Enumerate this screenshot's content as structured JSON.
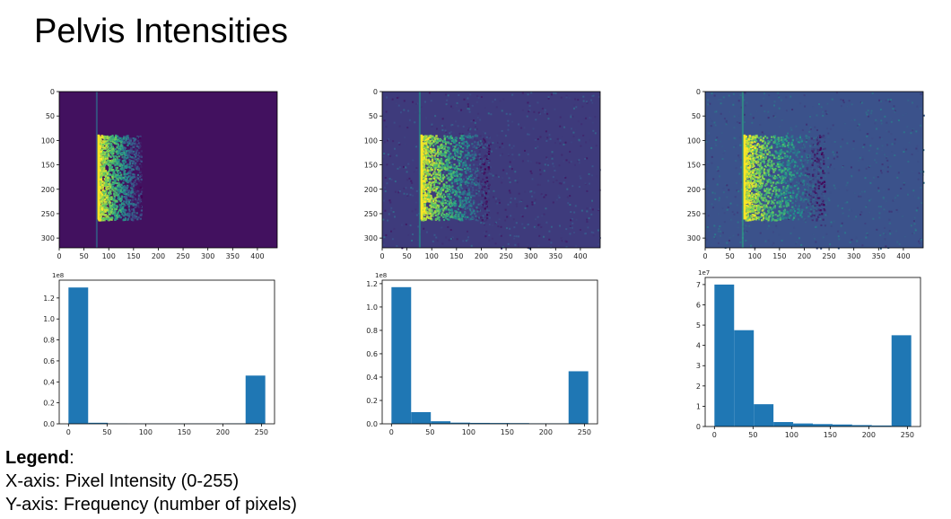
{
  "slide": {
    "title": "Pelvis Intensities"
  },
  "legend": {
    "heading": "Legend",
    "x_line": "X-axis: Pixel Intensity (0-255)",
    "y_line": "Y-axis: Frequency (number of pixels)"
  },
  "chart_data": [
    {
      "type": "heatmap",
      "colormap": "viridis",
      "xlim": [
        0,
        440
      ],
      "ylim": [
        320,
        0
      ],
      "x_ticks": [
        "0",
        "50",
        "100",
        "150",
        "200",
        "250",
        "300",
        "350",
        "400"
      ],
      "y_ticks": [
        "0",
        "50",
        "100",
        "150",
        "200",
        "250",
        "300"
      ],
      "x_tick_values": [
        0,
        50,
        100,
        150,
        200,
        250,
        300,
        350,
        400
      ],
      "y_tick_values": [
        0,
        50,
        100,
        150,
        200,
        250,
        300
      ],
      "signal_region": {
        "x": [
          78,
          165
        ],
        "y": [
          88,
          262
        ]
      },
      "background_level": 0.05
    },
    {
      "type": "heatmap",
      "colormap": "viridis",
      "xlim": [
        0,
        440
      ],
      "ylim": [
        320,
        0
      ],
      "x_ticks": [
        "0",
        "50",
        "100",
        "150",
        "200",
        "250",
        "300",
        "350",
        "400"
      ],
      "y_ticks": [
        "0",
        "50",
        "100",
        "150",
        "200",
        "250",
        "300"
      ],
      "x_tick_values": [
        0,
        50,
        100,
        150,
        200,
        250,
        300,
        350,
        400
      ],
      "y_tick_values": [
        0,
        50,
        100,
        150,
        200,
        250,
        300
      ],
      "signal_region": {
        "x": [
          78,
          215
        ],
        "y": [
          88,
          262
        ]
      },
      "background_level": 0.18
    },
    {
      "type": "heatmap",
      "colormap": "viridis",
      "xlim": [
        0,
        440
      ],
      "ylim": [
        320,
        0
      ],
      "x_ticks": [
        "0",
        "50",
        "100",
        "150",
        "200",
        "250",
        "300",
        "350",
        "400"
      ],
      "y_ticks": [
        "0",
        "50",
        "100",
        "150",
        "200",
        "250",
        "300"
      ],
      "x_tick_values": [
        0,
        50,
        100,
        150,
        200,
        250,
        300,
        350,
        400
      ],
      "y_tick_values": [
        0,
        50,
        100,
        150,
        200,
        250,
        300
      ],
      "signal_region": {
        "x": [
          78,
          240
        ],
        "y": [
          88,
          262
        ]
      },
      "background_level": 0.25
    },
    {
      "type": "bar",
      "color": "#1f77b4",
      "bin_edges": [
        0,
        25.5,
        51,
        76.5,
        102,
        127.5,
        153,
        178.5,
        204,
        229.5,
        255
      ],
      "values": [
        130000000.0,
        1000000.0,
        400000.0,
        300000.0,
        300000.0,
        300000.0,
        300000.0,
        300000.0,
        400000.0,
        46000000.0
      ],
      "xlim": [
        -12,
        267
      ],
      "ylim": [
        0,
        137000000.0
      ],
      "x_ticks": [
        "0",
        "50",
        "100",
        "150",
        "200",
        "250"
      ],
      "x_tick_values": [
        0,
        50,
        100,
        150,
        200,
        250
      ],
      "y_ticks": [
        "0.0",
        "0.2",
        "0.4",
        "0.6",
        "0.8",
        "1.0",
        "1.2"
      ],
      "y_tick_values": [
        0,
        20000000.0,
        40000000.0,
        60000000.0,
        80000000.0,
        100000000.0,
        120000000.0
      ],
      "offset_text": "1e8"
    },
    {
      "type": "bar",
      "color": "#1f77b4",
      "bin_edges": [
        0,
        25.5,
        51,
        76.5,
        102,
        127.5,
        153,
        178.5,
        204,
        229.5,
        255
      ],
      "values": [
        117000000.0,
        10000000.0,
        2200000.0,
        1000000.0,
        800000.0,
        700000.0,
        600000.0,
        400000.0,
        400000.0,
        45000000.0
      ],
      "xlim": [
        -12,
        267
      ],
      "ylim": [
        0,
        123000000.0
      ],
      "x_ticks": [
        "0",
        "50",
        "100",
        "150",
        "200",
        "250"
      ],
      "x_tick_values": [
        0,
        50,
        100,
        150,
        200,
        250
      ],
      "y_ticks": [
        "0.0",
        "0.2",
        "0.4",
        "0.6",
        "0.8",
        "1.0",
        "1.2"
      ],
      "y_tick_values": [
        0,
        20000000.0,
        40000000.0,
        60000000.0,
        80000000.0,
        100000000.0,
        120000000.0
      ],
      "offset_text": "1e8"
    },
    {
      "type": "bar",
      "color": "#1f77b4",
      "bin_edges": [
        0,
        25.5,
        51,
        76.5,
        102,
        127.5,
        153,
        178.5,
        204,
        229.5,
        255
      ],
      "values": [
        70000000.0,
        47500000.0,
        11000000.0,
        2200000.0,
        1500000.0,
        1200000.0,
        1000000.0,
        700000.0,
        500000.0,
        45000000.0
      ],
      "xlim": [
        -12,
        267
      ],
      "ylim": [
        0,
        73500000.0
      ],
      "x_ticks": [
        "0",
        "50",
        "100",
        "150",
        "200",
        "250"
      ],
      "x_tick_values": [
        0,
        50,
        100,
        150,
        200,
        250
      ],
      "y_ticks": [
        "0",
        "1",
        "2",
        "3",
        "4",
        "5",
        "6",
        "7"
      ],
      "y_tick_values": [
        0,
        10000000.0,
        20000000.0,
        30000000.0,
        40000000.0,
        50000000.0,
        60000000.0,
        70000000.0
      ],
      "offset_text": "1e7"
    }
  ]
}
